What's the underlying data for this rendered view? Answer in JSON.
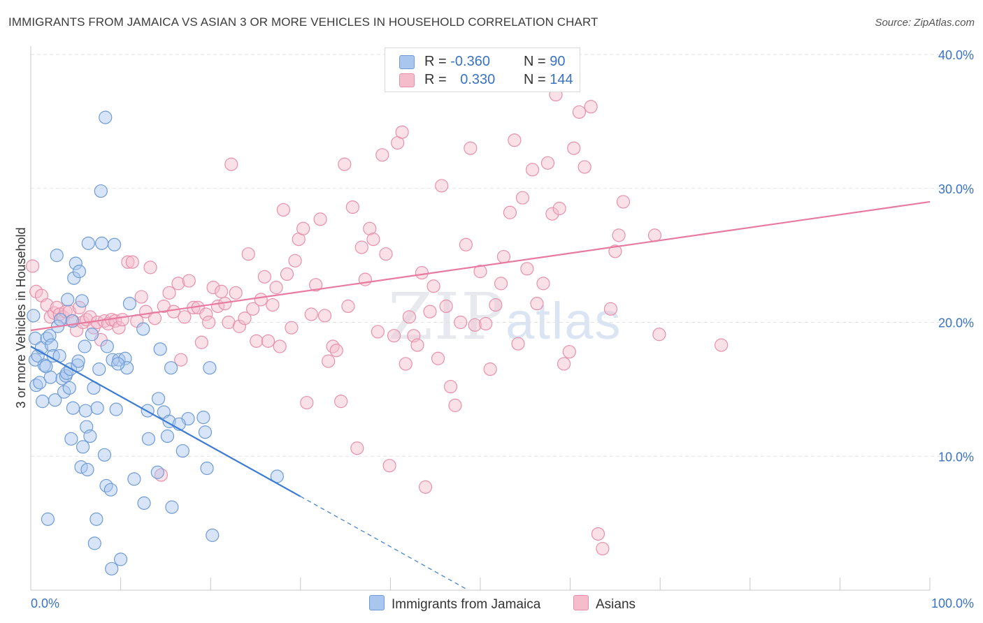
{
  "header": {
    "title": "IMMIGRANTS FROM JAMAICA VS ASIAN 3 OR MORE VEHICLES IN HOUSEHOLD CORRELATION CHART",
    "source": "Source: ZipAtlas.com"
  },
  "watermark": {
    "zip": "ZIP",
    "atlas": "atlas"
  },
  "legend": {
    "rows": [
      {
        "r_label": "R =",
        "r_value": "-0.360",
        "n_label": "N =",
        "n_value": "90",
        "color": "#a9c6ef",
        "border": "#6e9bd6"
      },
      {
        "r_label": "R =",
        "r_value": "0.330",
        "n_label": "N =",
        "n_value": "144",
        "color": "#f5bccb",
        "border": "#e890aa"
      }
    ]
  },
  "bottom_legend": [
    {
      "label": "Immigrants from Jamaica",
      "color": "#a9c6ef",
      "border": "#6e9bd6"
    },
    {
      "label": "Asians",
      "color": "#f5bccb",
      "border": "#e890aa"
    }
  ],
  "chart_data": {
    "type": "scatter",
    "title": "IMMIGRANTS FROM JAMAICA VS ASIAN 3 OR MORE VEHICLES IN HOUSEHOLD CORRELATION CHART",
    "xlabel": "",
    "ylabel": "3 or more Vehicles in Household",
    "xlim": [
      0,
      100
    ],
    "ylim": [
      0,
      40
    ],
    "x_tick_labels": [
      "0.0%",
      "100.0%"
    ],
    "y_ticks": [
      10,
      20,
      30,
      40
    ],
    "y_tick_labels": [
      "10.0%",
      "20.0%",
      "30.0%",
      "40.0%"
    ],
    "grid": true,
    "legend_position": "top-center",
    "colors": {
      "jamaica": "#3a7bd5",
      "asians": "#e87aa0",
      "tick_text": "#3a72c4"
    },
    "series": [
      {
        "name": "Immigrants from Jamaica",
        "color": "#3a7bd5",
        "points": [
          [
            0.3,
            20.5
          ],
          [
            0.5,
            18.8
          ],
          [
            0.5,
            17.2
          ],
          [
            0.6,
            15.3
          ],
          [
            0.8,
            17.5
          ],
          [
            1.0,
            15.5
          ],
          [
            1.2,
            18.1
          ],
          [
            1.3,
            14.1
          ],
          [
            1.5,
            16.8
          ],
          [
            1.7,
            16.7
          ],
          [
            1.8,
            18.8
          ],
          [
            1.9,
            5.3
          ],
          [
            2.1,
            19.0
          ],
          [
            2.2,
            15.9
          ],
          [
            2.3,
            18.3
          ],
          [
            2.5,
            17.5
          ],
          [
            2.7,
            14.2
          ],
          [
            2.9,
            25.0
          ],
          [
            3.0,
            19.7
          ],
          [
            3.2,
            17.5
          ],
          [
            3.3,
            20.2
          ],
          [
            3.5,
            15.8
          ],
          [
            3.7,
            14.8
          ],
          [
            3.9,
            16.0
          ],
          [
            4.0,
            16.2
          ],
          [
            4.1,
            21.7
          ],
          [
            4.3,
            15.1
          ],
          [
            4.4,
            16.5
          ],
          [
            4.5,
            11.3
          ],
          [
            4.6,
            20.1
          ],
          [
            4.7,
            13.6
          ],
          [
            4.8,
            23.3
          ],
          [
            5.0,
            24.4
          ],
          [
            5.2,
            16.8
          ],
          [
            5.3,
            17.1
          ],
          [
            5.4,
            23.8
          ],
          [
            5.6,
            9.2
          ],
          [
            5.7,
            21.6
          ],
          [
            5.8,
            10.7
          ],
          [
            6.0,
            18.2
          ],
          [
            6.1,
            13.4
          ],
          [
            6.2,
            12.2
          ],
          [
            6.3,
            9.0
          ],
          [
            6.4,
            25.9
          ],
          [
            6.6,
            11.5
          ],
          [
            6.8,
            19.1
          ],
          [
            7.0,
            15.1
          ],
          [
            7.1,
            3.5
          ],
          [
            7.3,
            5.3
          ],
          [
            7.4,
            13.6
          ],
          [
            7.6,
            16.5
          ],
          [
            7.8,
            29.8
          ],
          [
            7.9,
            25.9
          ],
          [
            8.2,
            10.1
          ],
          [
            8.3,
            35.3
          ],
          [
            8.4,
            7.8
          ],
          [
            8.5,
            18.2
          ],
          [
            8.9,
            7.5
          ],
          [
            9.0,
            1.6
          ],
          [
            9.1,
            17.2
          ],
          [
            9.3,
            25.8
          ],
          [
            9.5,
            13.5
          ],
          [
            9.8,
            17.2
          ],
          [
            10.0,
            2.3
          ],
          [
            10.5,
            17.3
          ],
          [
            11.0,
            21.4
          ],
          [
            11.5,
            8.3
          ],
          [
            12.5,
            19.5
          ],
          [
            12.6,
            6.5
          ],
          [
            13.0,
            13.4
          ],
          [
            14.1,
            8.8
          ],
          [
            14.2,
            14.3
          ],
          [
            14.4,
            18.0
          ],
          [
            14.8,
            13.3
          ],
          [
            15.2,
            11.5
          ],
          [
            15.4,
            12.6
          ],
          [
            15.6,
            16.6
          ],
          [
            15.7,
            6.2
          ],
          [
            16.9,
            10.4
          ],
          [
            17.5,
            12.8
          ],
          [
            19.2,
            12.9
          ],
          [
            19.4,
            11.8
          ],
          [
            19.6,
            9.1
          ],
          [
            19.9,
            16.6
          ],
          [
            20.2,
            4.1
          ],
          [
            27.4,
            8.5
          ],
          [
            16.5,
            12.4
          ],
          [
            13.1,
            11.3
          ],
          [
            10.7,
            16.6
          ],
          [
            9.7,
            16.9
          ]
        ],
        "trend": {
          "solid": [
            [
              0,
              18.2
            ],
            [
              30,
              7.0
            ]
          ],
          "dashed": [
            [
              30,
              7.0
            ],
            [
              50,
              -0.5
            ]
          ]
        }
      },
      {
        "name": "Asians",
        "color": "#e87aa0",
        "points": [
          [
            0.2,
            24.2
          ],
          [
            0.6,
            22.3
          ],
          [
            1.2,
            22.0
          ],
          [
            1.8,
            21.3
          ],
          [
            2.2,
            20.4
          ],
          [
            2.6,
            20.7
          ],
          [
            2.9,
            21.1
          ],
          [
            3.2,
            20.6
          ],
          [
            3.6,
            20.4
          ],
          [
            3.9,
            20.8
          ],
          [
            4.3,
            20.8
          ],
          [
            4.7,
            20.1
          ],
          [
            5.1,
            19.4
          ],
          [
            5.4,
            21.1
          ],
          [
            5.8,
            20.0
          ],
          [
            6.2,
            20.2
          ],
          [
            6.6,
            20.4
          ],
          [
            7.0,
            19.6
          ],
          [
            7.4,
            20.0
          ],
          [
            7.8,
            18.7
          ],
          [
            8.2,
            20.1
          ],
          [
            8.6,
            19.9
          ],
          [
            9.0,
            20.2
          ],
          [
            9.4,
            20.1
          ],
          [
            9.8,
            19.6
          ],
          [
            10.2,
            20.2
          ],
          [
            10.8,
            24.5
          ],
          [
            11.3,
            24.5
          ],
          [
            11.8,
            20.1
          ],
          [
            12.3,
            21.9
          ],
          [
            12.8,
            20.8
          ],
          [
            13.3,
            24.1
          ],
          [
            13.8,
            20.3
          ],
          [
            14.5,
            8.6
          ],
          [
            14.8,
            21.2
          ],
          [
            15.4,
            22.2
          ],
          [
            15.9,
            20.8
          ],
          [
            16.4,
            22.9
          ],
          [
            16.7,
            17.2
          ],
          [
            17.1,
            20.4
          ],
          [
            17.6,
            23.1
          ],
          [
            18.1,
            21.1
          ],
          [
            18.6,
            21.1
          ],
          [
            19.0,
            18.5
          ],
          [
            19.5,
            20.6
          ],
          [
            19.8,
            20.0
          ],
          [
            20.3,
            22.6
          ],
          [
            20.8,
            21.2
          ],
          [
            21.2,
            22.3
          ],
          [
            21.6,
            21.4
          ],
          [
            22.0,
            20.0
          ],
          [
            22.3,
            31.8
          ],
          [
            22.8,
            22.2
          ],
          [
            23.2,
            19.7
          ],
          [
            23.8,
            20.3
          ],
          [
            24.2,
            25.1
          ],
          [
            24.7,
            21.0
          ],
          [
            25.1,
            18.6
          ],
          [
            25.6,
            21.7
          ],
          [
            26.0,
            23.4
          ],
          [
            26.4,
            18.6
          ],
          [
            26.9,
            21.3
          ],
          [
            27.3,
            22.6
          ],
          [
            27.7,
            18.2
          ],
          [
            28.1,
            28.4
          ],
          [
            28.5,
            23.6
          ],
          [
            29.0,
            19.6
          ],
          [
            29.4,
            24.6
          ],
          [
            29.8,
            26.2
          ],
          [
            30.3,
            27.0
          ],
          [
            30.7,
            14.0
          ],
          [
            31.2,
            20.6
          ],
          [
            31.7,
            22.8
          ],
          [
            32.2,
            27.7
          ],
          [
            32.7,
            20.5
          ],
          [
            33.1,
            17.1
          ],
          [
            33.6,
            18.2
          ],
          [
            34.0,
            17.9
          ],
          [
            34.5,
            14.1
          ],
          [
            34.9,
            31.8
          ],
          [
            35.3,
            21.2
          ],
          [
            35.8,
            28.6
          ],
          [
            36.3,
            10.6
          ],
          [
            36.8,
            25.6
          ],
          [
            37.2,
            23.2
          ],
          [
            37.7,
            27.0
          ],
          [
            38.1,
            26.2
          ],
          [
            38.6,
            19.3
          ],
          [
            39.1,
            32.5
          ],
          [
            39.5,
            25.1
          ],
          [
            39.9,
            9.3
          ],
          [
            40.4,
            19.0
          ],
          [
            40.8,
            33.4
          ],
          [
            41.3,
            34.2
          ],
          [
            41.7,
            16.9
          ],
          [
            42.1,
            20.4
          ],
          [
            42.6,
            19.0
          ],
          [
            43.0,
            18.3
          ],
          [
            43.5,
            23.7
          ],
          [
            43.9,
            7.7
          ],
          [
            44.4,
            20.8
          ],
          [
            44.8,
            22.7
          ],
          [
            45.3,
            17.3
          ],
          [
            45.7,
            30.2
          ],
          [
            46.2,
            21.2
          ],
          [
            46.7,
            15.2
          ],
          [
            47.2,
            13.8
          ],
          [
            47.8,
            20.0
          ],
          [
            48.4,
            25.8
          ],
          [
            48.9,
            33.0
          ],
          [
            49.4,
            19.8
          ],
          [
            50.0,
            23.8
          ],
          [
            50.6,
            19.9
          ],
          [
            51.1,
            16.5
          ],
          [
            51.7,
            21.3
          ],
          [
            52.3,
            22.9
          ],
          [
            52.6,
            24.9
          ],
          [
            53.3,
            28.2
          ],
          [
            53.8,
            33.6
          ],
          [
            54.2,
            18.4
          ],
          [
            54.7,
            29.3
          ],
          [
            55.2,
            24.0
          ],
          [
            55.8,
            31.4
          ],
          [
            56.3,
            21.4
          ],
          [
            57.0,
            22.9
          ],
          [
            57.5,
            31.9
          ],
          [
            58.0,
            28.1
          ],
          [
            58.4,
            37.0
          ],
          [
            58.8,
            28.5
          ],
          [
            59.3,
            16.9
          ],
          [
            59.9,
            17.8
          ],
          [
            60.4,
            33.0
          ],
          [
            61.0,
            35.7
          ],
          [
            61.6,
            31.6
          ],
          [
            62.3,
            36.1
          ],
          [
            63.1,
            4.2
          ],
          [
            63.6,
            3.1
          ],
          [
            64.5,
            21.0
          ],
          [
            65.0,
            25.3
          ],
          [
            65.4,
            26.5
          ],
          [
            65.9,
            29.0
          ],
          [
            69.4,
            26.5
          ],
          [
            69.9,
            19.1
          ],
          [
            76.8,
            18.3
          ]
        ],
        "trend": {
          "solid": [
            [
              0,
              19.4
            ],
            [
              100,
              29.0
            ]
          ]
        }
      }
    ]
  }
}
